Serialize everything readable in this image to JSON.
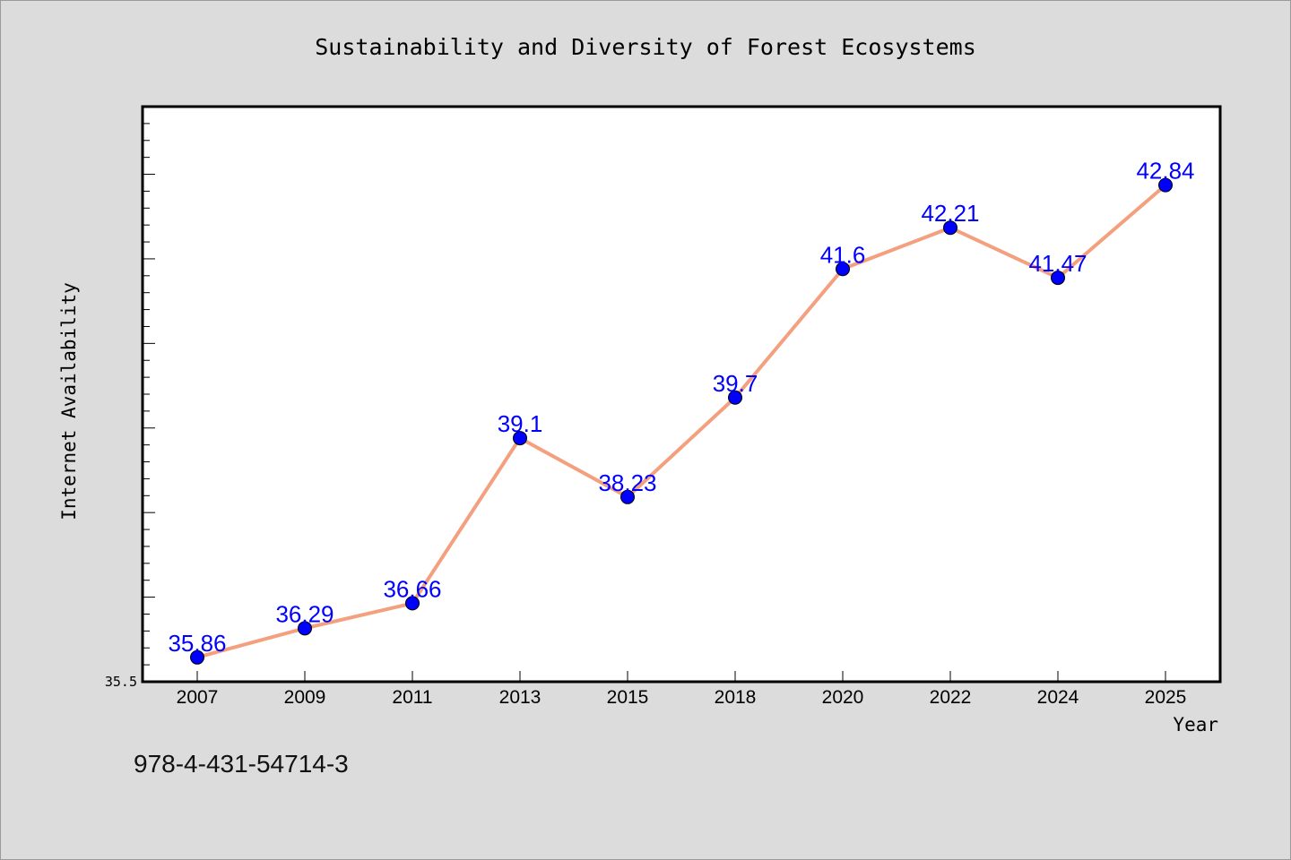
{
  "footer_code": "978-4-431-54714-3",
  "colors": {
    "background": "#dcdcdc",
    "plot_area": "#ffffff",
    "line": "#f4a07e",
    "marker": "#0000ff",
    "data_label": "#0000ff"
  },
  "chart_data": {
    "type": "line",
    "title": "Sustainability and Diversity of Forest Ecosystems",
    "xlabel": "Year",
    "ylabel": "Internet Availability",
    "categories": [
      "2007",
      "2009",
      "2011",
      "2013",
      "2015",
      "2018",
      "2020",
      "2022",
      "2024",
      "2025"
    ],
    "series": [
      {
        "values": [
          35.86,
          36.29,
          36.66,
          39.1,
          38.23,
          39.7,
          41.6,
          42.21,
          41.47,
          42.84
        ],
        "data_labels": [
          "35.86",
          "36.29",
          "36.66",
          "39.1",
          "38.23",
          "39.7",
          "41.6",
          "42.21",
          "41.47",
          "42.84"
        ]
      }
    ],
    "ylim": [
      35.5,
      44.0
    ],
    "ytick_labels": [
      "35.5"
    ],
    "grid": false,
    "legend": "none"
  }
}
